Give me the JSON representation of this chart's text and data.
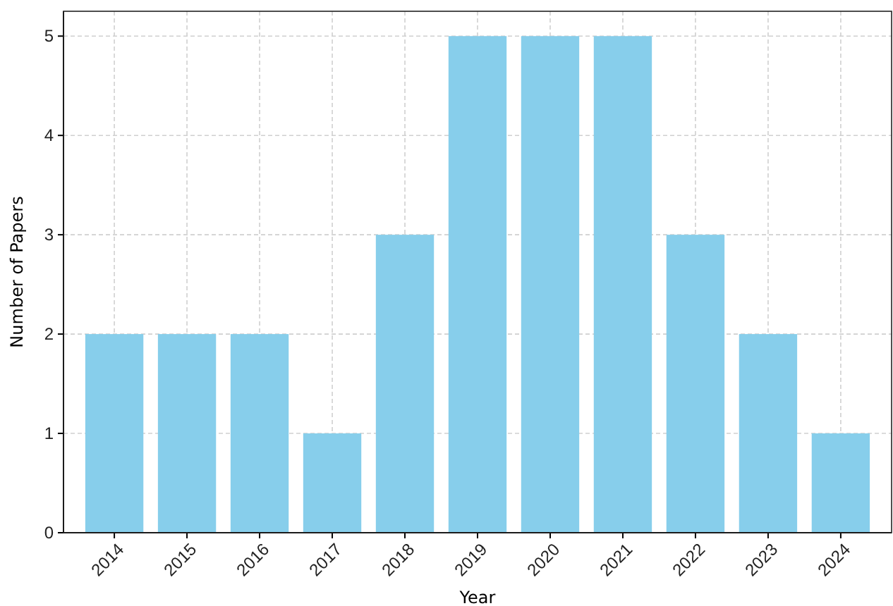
{
  "chart_data": {
    "type": "bar",
    "xlabel": "Year",
    "ylabel": "Number of Papers",
    "categories": [
      "2014",
      "2015",
      "2016",
      "2017",
      "2018",
      "2019",
      "2020",
      "2021",
      "2022",
      "2023",
      "2024"
    ],
    "values": [
      2,
      2,
      2,
      1,
      3,
      5,
      5,
      5,
      3,
      2,
      1
    ],
    "color": "#87ceeb",
    "ylim": [
      0,
      5.25
    ],
    "yticks": [
      0,
      1,
      2,
      3,
      4,
      5
    ],
    "grid": true
  }
}
